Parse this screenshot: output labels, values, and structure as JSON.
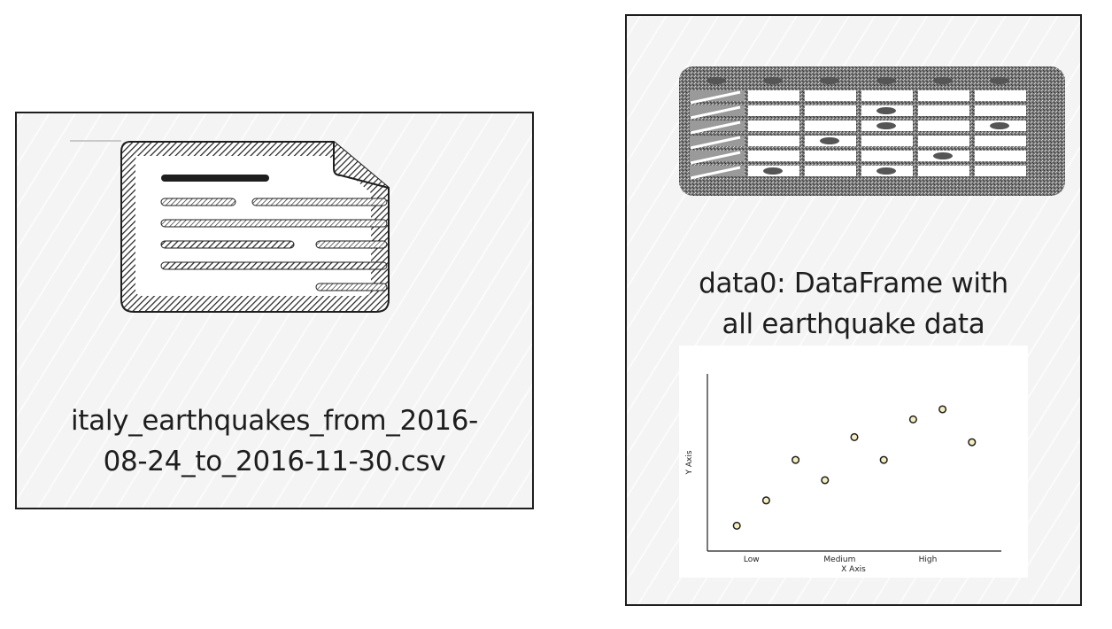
{
  "csv_card": {
    "icon": "document-icon",
    "filename_line1": "italy_earthquakes_from_2016-",
    "filename_line2": "08-24_to_2016-11-30.csv"
  },
  "dataframe_card": {
    "icon": "table-icon",
    "label_line1": "data0: DataFrame with",
    "label_line2": "all earthquake data"
  },
  "chart_data": {
    "type": "scatter",
    "xlabel": "X Axis",
    "ylabel": "Y Axis",
    "x_ticks": [
      "Low",
      "Medium",
      "High"
    ],
    "x": [
      1,
      2,
      3,
      4,
      5,
      6,
      7,
      8,
      9
    ],
    "y": [
      1.0,
      2.0,
      3.6,
      2.8,
      4.5,
      3.6,
      5.2,
      5.6,
      4.3
    ],
    "xlim": [
      0,
      10
    ],
    "ylim": [
      0,
      7
    ],
    "marker_color": "#f5efbf",
    "marker_edge": "#1e1e1e",
    "grid": false
  }
}
